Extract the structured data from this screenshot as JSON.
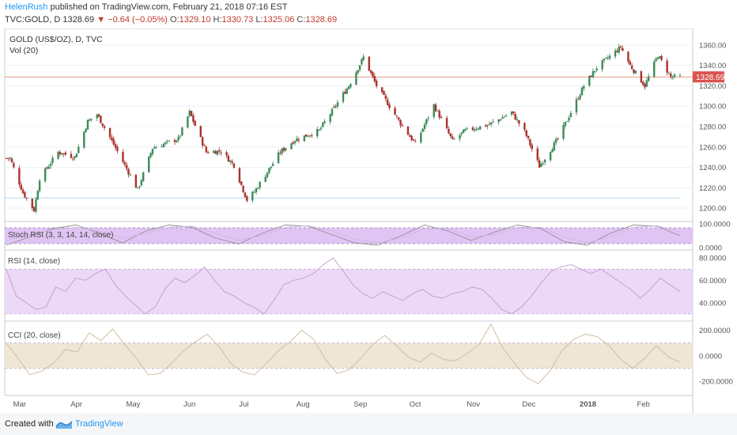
{
  "header": {
    "author": "HelenRush",
    "published_text": "published on TradingView.com, February 21, 2018 07:16 EST",
    "symbol": "TVC:GOLD, D",
    "last": "1328.69",
    "change": "−0.64 (−0.05%)",
    "o_label": "O:",
    "o_value": "1329.10",
    "h_label": "H:",
    "h_value": "1330.73",
    "l_label": "L:",
    "l_value": "1325.06",
    "c_label": "C:",
    "c_value": "1328.69"
  },
  "footer": {
    "created_with": "Created with",
    "brand": "TradingView"
  },
  "colors": {
    "up": "#3d8b5a",
    "down": "#a8322d",
    "price_line": "#e07a5f",
    "rsi_fill": "#ecd9f7",
    "cci_fill": "#efe6d6",
    "stoch_fill": "#e0c5f4"
  },
  "chart_data": [
    {
      "type": "candlestick",
      "title": "GOLD (US$/OZ), D, TVC",
      "subtitle": "Vol (20)",
      "ylim": [
        1190,
        1370
      ],
      "y_ticks": [
        "1360.00",
        "1340.00",
        "1320.00",
        "1300.00",
        "1280.00",
        "1260.00",
        "1240.00",
        "1220.00",
        "1200.00"
      ],
      "last_price_label": "1328.69",
      "x_tick_labels": [
        "Mar",
        "Apr",
        "May",
        "Jun",
        "Jul",
        "Aug",
        "Sep",
        "Oct",
        "Nov",
        "Dec",
        "2018",
        "Feb"
      ],
      "close_path": [
        [
          "2017-03-01",
          1249
        ],
        [
          "2017-03-08",
          1215
        ],
        [
          "2017-03-14",
          1198
        ],
        [
          "2017-03-17",
          1229
        ],
        [
          "2017-03-27",
          1255
        ],
        [
          "2017-04-05",
          1250
        ],
        [
          "2017-04-12",
          1285
        ],
        [
          "2017-04-17",
          1292
        ],
        [
          "2017-04-25",
          1266
        ],
        [
          "2017-05-09",
          1218
        ],
        [
          "2017-05-17",
          1259
        ],
        [
          "2017-05-31",
          1268
        ],
        [
          "2017-06-06",
          1294
        ],
        [
          "2017-06-15",
          1255
        ],
        [
          "2017-06-23",
          1256
        ],
        [
          "2017-06-30",
          1242
        ],
        [
          "2017-07-07",
          1208
        ],
        [
          "2017-07-11",
          1216
        ],
        [
          "2017-07-25",
          1255
        ],
        [
          "2017-08-02",
          1267
        ],
        [
          "2017-08-15",
          1276
        ],
        [
          "2017-08-31",
          1320
        ],
        [
          "2017-09-08",
          1348
        ],
        [
          "2017-09-15",
          1320
        ],
        [
          "2017-09-28",
          1283
        ],
        [
          "2017-10-06",
          1263
        ],
        [
          "2017-10-16",
          1301
        ],
        [
          "2017-10-26",
          1266
        ],
        [
          "2017-11-02",
          1276
        ],
        [
          "2017-11-15",
          1282
        ],
        [
          "2017-11-27",
          1294
        ],
        [
          "2017-12-04",
          1275
        ],
        [
          "2017-12-12",
          1241
        ],
        [
          "2017-12-22",
          1268
        ],
        [
          "2018-01-05",
          1320
        ],
        [
          "2018-01-12",
          1338
        ],
        [
          "2018-01-25",
          1358
        ],
        [
          "2018-01-30",
          1340
        ],
        [
          "2018-02-07",
          1320
        ],
        [
          "2018-02-14",
          1350
        ],
        [
          "2018-02-21",
          1328.69
        ]
      ]
    },
    {
      "type": "line",
      "title": "Stoch RSI (3, 3, 14, 14, close)",
      "ylim": [
        0,
        100
      ],
      "y_ticks": [
        "100.0000",
        "0.0000"
      ],
      "series": [
        {
          "values": [
            10,
            45,
            80,
            95,
            60,
            20,
            70,
            95,
            85,
            40,
            15,
            60,
            95,
            90,
            55,
            20,
            10,
            50,
            95,
            70,
            30,
            65,
            95,
            80,
            25,
            10,
            60,
            95,
            90,
            50
          ]
        },
        {
          "values": [
            30,
            55,
            75,
            85,
            70,
            40,
            60,
            85,
            90,
            60,
            30,
            50,
            85,
            92,
            70,
            35,
            20,
            40,
            80,
            80,
            45,
            55,
            85,
            85,
            45,
            20,
            45,
            85,
            92,
            65
          ]
        }
      ]
    },
    {
      "type": "line",
      "title": "RSI (14, close)",
      "ylim": [
        25,
        85
      ],
      "bands": [
        30,
        70
      ],
      "y_ticks": [
        "80.0000",
        "60.0000",
        "40.0000"
      ],
      "series": [
        {
          "values": [
            70,
            46,
            40,
            34,
            36,
            54,
            50,
            62,
            60,
            66,
            70,
            56,
            46,
            38,
            30,
            36,
            52,
            62,
            58,
            64,
            72,
            60,
            50,
            46,
            40,
            36,
            30,
            42,
            56,
            60,
            62,
            66,
            74,
            80,
            68,
            56,
            48,
            44,
            50,
            46,
            42,
            48,
            52,
            46,
            44,
            48,
            50,
            54,
            52,
            44,
            34,
            30,
            36,
            46,
            58,
            68,
            72,
            74,
            70,
            66,
            70,
            64,
            58,
            52,
            44,
            52,
            62,
            56,
            50
          ]
        }
      ]
    },
    {
      "type": "line",
      "title": "CCI (20, close)",
      "ylim": [
        -300,
        260
      ],
      "bands": [
        -100,
        100
      ],
      "y_ticks": [
        "200.0000",
        "0.0000",
        "-200.0000"
      ],
      "series": [
        {
          "values": [
            100,
            -20,
            -150,
            -120,
            -60,
            50,
            30,
            180,
            120,
            210,
            90,
            -20,
            -150,
            -140,
            -60,
            40,
            110,
            170,
            70,
            -60,
            -130,
            -150,
            -60,
            40,
            110,
            200,
            130,
            -30,
            -140,
            -110,
            -20,
            90,
            160,
            80,
            -10,
            -50,
            20,
            -30,
            -40,
            20,
            90,
            250,
            60,
            -60,
            -170,
            -220,
            -120,
            40,
            130,
            170,
            150,
            80,
            -30,
            -100,
            -20,
            80,
            -10,
            -50
          ]
        }
      ]
    }
  ]
}
